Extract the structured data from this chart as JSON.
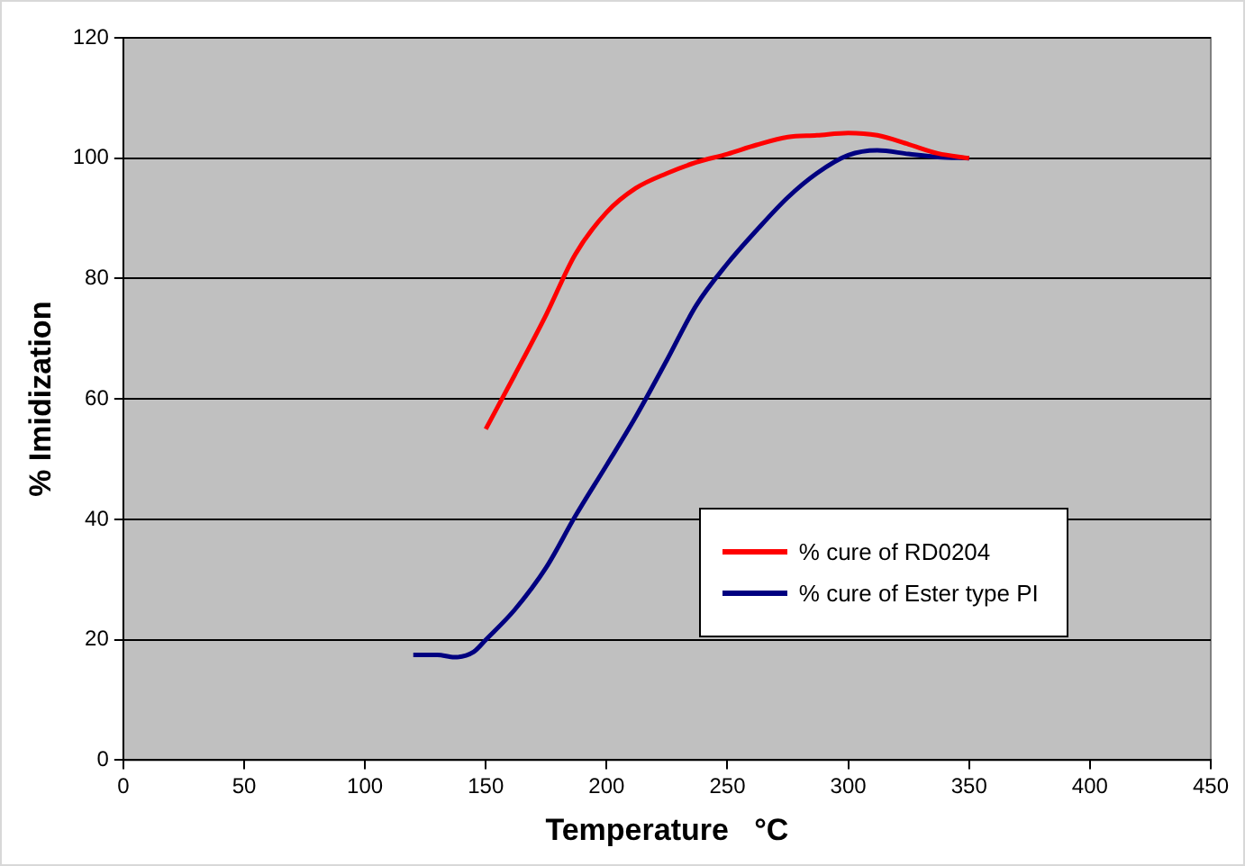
{
  "chart_data": {
    "type": "line",
    "xlabel": "Temperature   °C",
    "ylabel": "% Imidization",
    "xlim": [
      0,
      450
    ],
    "xticks": [
      0,
      50,
      100,
      150,
      200,
      250,
      300,
      350,
      400,
      450
    ],
    "ylim": [
      0,
      120
    ],
    "yticks": [
      0,
      20,
      40,
      60,
      80,
      100,
      120
    ],
    "grid": "y",
    "legend": "bottom right",
    "marker": "none",
    "line_style": "solid",
    "series": [
      {
        "name": "% cure of RD0204",
        "color": "#ff0000",
        "x": [
          150,
          162,
          175,
          187,
          200,
          212,
          225,
          237,
          250,
          262,
          275,
          287,
          300,
          312,
          325,
          337,
          350
        ],
        "values": [
          55,
          64,
          74,
          84,
          91,
          95,
          97.5,
          99.3,
          100.7,
          102.2,
          103.5,
          103.8,
          104.2,
          103.8,
          102.3,
          100.8,
          100
        ]
      },
      {
        "name": "% cure of Ester type PI",
        "color": "#000080",
        "x": [
          120,
          130,
          137,
          145,
          150,
          162,
          175,
          187,
          200,
          212,
          225,
          237,
          250,
          262,
          275,
          287,
          300,
          312,
          325,
          337,
          350
        ],
        "values": [
          17.5,
          17.5,
          17.1,
          18,
          20,
          25,
          32,
          40.5,
          49,
          57,
          66.5,
          75.5,
          82.5,
          88,
          93.5,
          97.5,
          100.5,
          101.3,
          100.7,
          100.2,
          100
        ]
      }
    ]
  }
}
